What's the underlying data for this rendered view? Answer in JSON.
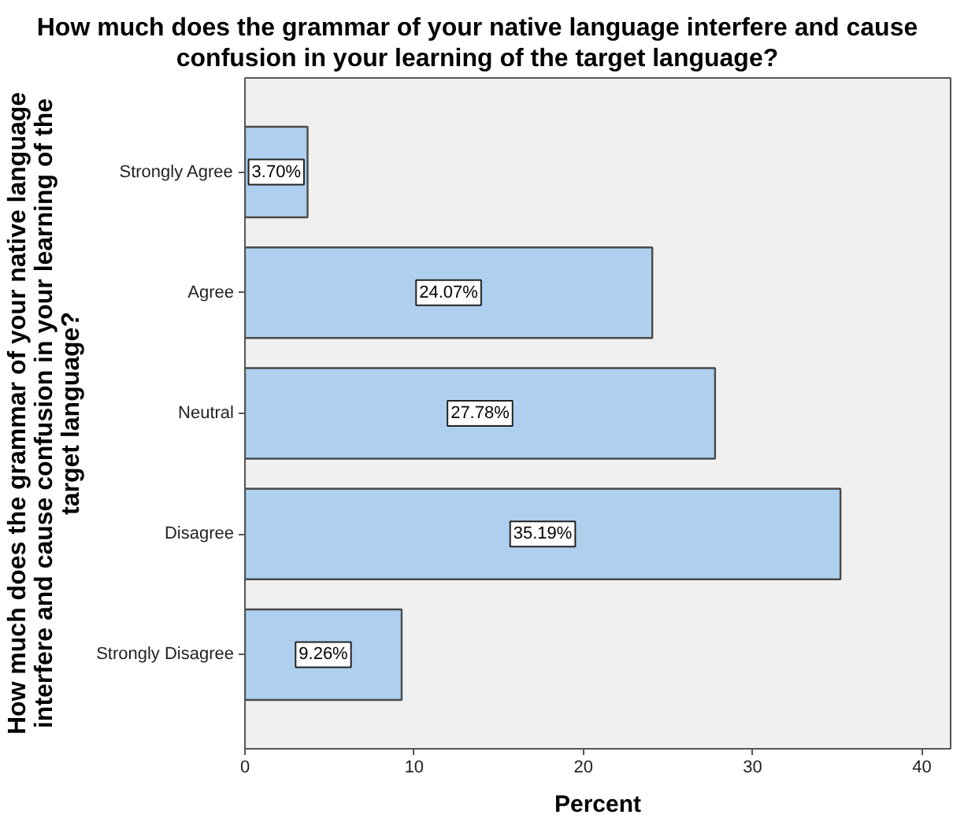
{
  "chart_data": {
    "type": "bar",
    "orientation": "horizontal",
    "title": "How much does the grammar of your native language interfere and cause confusion in your learning of the target language?",
    "xlabel": "Percent",
    "ylabel": "How much does the grammar of your native language interfere and cause confusion in your learning of the target language?",
    "categories": [
      "Strongly Agree",
      "Agree",
      "Neutral",
      "Disagree",
      "Strongly Disagree"
    ],
    "values": [
      3.7,
      24.07,
      27.78,
      35.19,
      9.26
    ],
    "value_labels": [
      "3.70%",
      "24.07%",
      "27.78%",
      "35.19%",
      "9.26%"
    ],
    "color": "#aed0ee",
    "xlim": [
      0,
      41.7
    ],
    "xticks": [
      0,
      10,
      20,
      30,
      40
    ],
    "grid": false
  }
}
